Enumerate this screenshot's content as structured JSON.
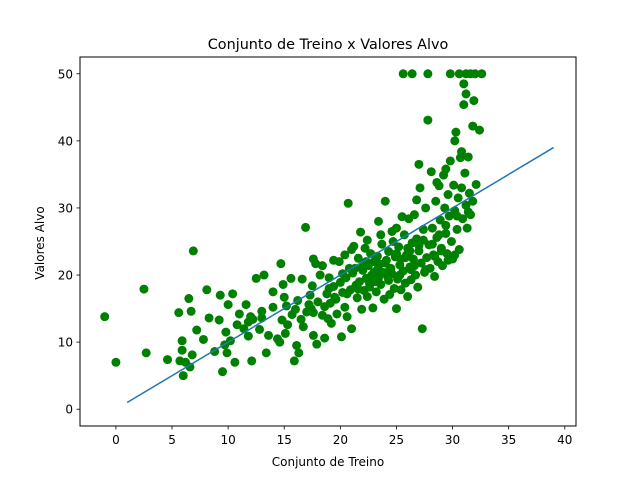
{
  "chart_data": {
    "type": "scatter",
    "title": "Conjunto de Treino x Valores Alvo",
    "xlabel": "Conjunto de Treino",
    "ylabel": "Valores Alvo",
    "xlim": [
      -3.2,
      41
    ],
    "ylim": [
      -2.5,
      52.5
    ],
    "xticks": [
      0,
      5,
      10,
      15,
      20,
      25,
      30,
      35,
      40
    ],
    "yticks": [
      0,
      10,
      20,
      30,
      40,
      50
    ],
    "grid": false,
    "legend": "none",
    "colors": {
      "points": "#008000",
      "line": "#1f77b4"
    },
    "series": [
      {
        "type": "scatter",
        "points": [
          [
            -1,
            13.8
          ],
          [
            0,
            7
          ],
          [
            2.5,
            17.9
          ],
          [
            2.7,
            8.4
          ],
          [
            4.6,
            7.4
          ],
          [
            5.7,
            7.2
          ],
          [
            5.6,
            14.4
          ],
          [
            5.9,
            10.2
          ],
          [
            5.9,
            8.8
          ],
          [
            6.0,
            5.0
          ],
          [
            6.2,
            7.0
          ],
          [
            6.5,
            16.5
          ],
          [
            6.6,
            6.3
          ],
          [
            6.7,
            14.6
          ],
          [
            6.8,
            8.1
          ],
          [
            6.9,
            23.6
          ],
          [
            7.2,
            11.8
          ],
          [
            7.8,
            10.4
          ],
          [
            8.1,
            17.8
          ],
          [
            8.3,
            13.6
          ],
          [
            8.8,
            8.6
          ],
          [
            9.2,
            13.3
          ],
          [
            9.3,
            17.0
          ],
          [
            9.5,
            5.6
          ],
          [
            9.7,
            9.6
          ],
          [
            9.9,
            8.4
          ],
          [
            10.0,
            15.6
          ],
          [
            10.2,
            10.2
          ],
          [
            10.4,
            17.2
          ],
          [
            10.6,
            7.0
          ],
          [
            11.0,
            14.2
          ],
          [
            11.4,
            12.0
          ],
          [
            11.6,
            15.6
          ],
          [
            11.8,
            10.9
          ],
          [
            12.0,
            13.8
          ],
          [
            12.1,
            7.2
          ],
          [
            12.2,
            13.4
          ],
          [
            12.5,
            19.5
          ],
          [
            12.8,
            11.9
          ],
          [
            13.0,
            13.6
          ],
          [
            13.2,
            20.0
          ],
          [
            13.4,
            8.4
          ],
          [
            13.6,
            11.0
          ],
          [
            14.0,
            17.5
          ],
          [
            14.4,
            10.5
          ],
          [
            14.6,
            10.0
          ],
          [
            14.7,
            21.7
          ],
          [
            14.8,
            13.3
          ],
          [
            14.9,
            18.6
          ],
          [
            15.1,
            11.3
          ],
          [
            15.2,
            15.4
          ],
          [
            15.3,
            12.6
          ],
          [
            15.6,
            19.5
          ],
          [
            15.7,
            14.1
          ],
          [
            15.9,
            7.2
          ],
          [
            16.0,
            14.9
          ],
          [
            16.1,
            9.5
          ],
          [
            16.2,
            16.2
          ],
          [
            16.3,
            8.4
          ],
          [
            16.5,
            13.4
          ],
          [
            16.7,
            12.3
          ],
          [
            16.9,
            27.1
          ],
          [
            17.0,
            14.5
          ],
          [
            17.2,
            15.6
          ],
          [
            17.3,
            17.0
          ],
          [
            17.4,
            15.0
          ],
          [
            17.5,
            18.4
          ],
          [
            17.6,
            11.0
          ],
          [
            17.8,
            21.7
          ],
          [
            17.9,
            9.7
          ],
          [
            18.0,
            16.0
          ],
          [
            18.2,
            20.0
          ],
          [
            18.4,
            14.0
          ],
          [
            18.6,
            10.6
          ],
          [
            18.8,
            17.2
          ],
          [
            18.9,
            13.5
          ],
          [
            19.0,
            19.6
          ],
          [
            19.1,
            15.8
          ],
          [
            19.2,
            12.8
          ],
          [
            19.4,
            18.3
          ],
          [
            19.5,
            16.7
          ],
          [
            19.7,
            14.2
          ],
          [
            19.9,
            22.0
          ],
          [
            20.0,
            18.9
          ],
          [
            20.1,
            10.8
          ],
          [
            20.2,
            17.4
          ],
          [
            20.4,
            15.2
          ],
          [
            20.5,
            19.6
          ],
          [
            20.6,
            13.8
          ],
          [
            20.7,
            30.7
          ],
          [
            20.8,
            21.0
          ],
          [
            20.9,
            17.8
          ],
          [
            21.0,
            12.0
          ],
          [
            21.1,
            20.3
          ],
          [
            21.2,
            24.3
          ],
          [
            21.4,
            18.5
          ],
          [
            21.5,
            16.6
          ],
          [
            21.6,
            22.5
          ],
          [
            21.7,
            19.0
          ],
          [
            21.8,
            26.4
          ],
          [
            21.9,
            14.9
          ],
          [
            22.0,
            20.7
          ],
          [
            22.1,
            17.7
          ],
          [
            22.2,
            24.0
          ],
          [
            22.3,
            19.5
          ],
          [
            22.4,
            16.8
          ],
          [
            22.5,
            21.4
          ],
          [
            22.6,
            18.2
          ],
          [
            22.7,
            23.2
          ],
          [
            22.8,
            20.0
          ],
          [
            22.9,
            15.1
          ],
          [
            23.0,
            22.0
          ],
          [
            23.1,
            19.0
          ],
          [
            23.2,
            17.5
          ],
          [
            23.3,
            20.8
          ],
          [
            23.4,
            28.0
          ],
          [
            23.5,
            21.6
          ],
          [
            23.6,
            18.6
          ],
          [
            23.7,
            24.6
          ],
          [
            23.8,
            20.4
          ],
          [
            23.9,
            16.4
          ],
          [
            24.0,
            31.0
          ],
          [
            24.1,
            22.2
          ],
          [
            24.2,
            19.8
          ],
          [
            24.3,
            23.5
          ],
          [
            24.4,
            17.1
          ],
          [
            24.5,
            21.0
          ],
          [
            24.6,
            20.2
          ],
          [
            24.7,
            25.0
          ],
          [
            24.8,
            18.0
          ],
          [
            24.9,
            22.7
          ],
          [
            25.0,
            15.0
          ],
          [
            25.1,
            19.4
          ],
          [
            25.2,
            24.2
          ],
          [
            25.3,
            21.5
          ],
          [
            25.4,
            17.8
          ],
          [
            25.5,
            28.7
          ],
          [
            25.6,
            20.6
          ],
          [
            25.7,
            26.0
          ],
          [
            25.8,
            18.8
          ],
          [
            25.9,
            23.0
          ],
          [
            26.0,
            16.8
          ],
          [
            26.1,
            28.4
          ],
          [
            26.2,
            21.2
          ],
          [
            26.3,
            19.3
          ],
          [
            26.4,
            24.8
          ],
          [
            26.5,
            22.4
          ],
          [
            26.6,
            29.0
          ],
          [
            26.7,
            20.0
          ],
          [
            26.8,
            25.4
          ],
          [
            26.9,
            18.2
          ],
          [
            27.0,
            23.6
          ],
          [
            27.1,
            33.0
          ],
          [
            27.2,
            21.8
          ],
          [
            27.3,
            12.0
          ],
          [
            27.4,
            26.8
          ],
          [
            27.5,
            20.4
          ],
          [
            27.6,
            30.0
          ],
          [
            27.7,
            22.6
          ],
          [
            27.8,
            43.1
          ],
          [
            27.9,
            24.5
          ],
          [
            28.0,
            21.0
          ],
          [
            28.1,
            35.4
          ],
          [
            28.2,
            27.0
          ],
          [
            28.3,
            23.0
          ],
          [
            28.4,
            19.8
          ],
          [
            28.5,
            31.0
          ],
          [
            28.6,
            25.6
          ],
          [
            28.7,
            22.0
          ],
          [
            28.8,
            33.3
          ],
          [
            28.9,
            28.2
          ],
          [
            29.0,
            24.0
          ],
          [
            29.1,
            21.4
          ],
          [
            29.2,
            34.9
          ],
          [
            29.3,
            30.0
          ],
          [
            29.4,
            26.2
          ],
          [
            29.5,
            23.2
          ],
          [
            29.6,
            32.0
          ],
          [
            29.7,
            28.8
          ],
          [
            29.8,
            37.0
          ],
          [
            29.9,
            25.0
          ],
          [
            30.0,
            22.4
          ],
          [
            30.1,
            33.4
          ],
          [
            30.2,
            29.6
          ],
          [
            30.3,
            41.3
          ],
          [
            30.4,
            26.8
          ],
          [
            30.5,
            31.5
          ],
          [
            30.6,
            23.8
          ],
          [
            30.7,
            37.5
          ],
          [
            30.8,
            33.0
          ],
          [
            30.9,
            28.4
          ],
          [
            31.0,
            45.4
          ],
          [
            31.1,
            35.2
          ],
          [
            31.2,
            30.4
          ],
          [
            31.3,
            27.0
          ],
          [
            31.4,
            37.6
          ],
          [
            31.5,
            32.2
          ],
          [
            31.6,
            29.0
          ],
          [
            31.8,
            42.2
          ],
          [
            31.9,
            46.0
          ],
          [
            32.1,
            33.5
          ],
          [
            32.4,
            41.6
          ],
          [
            31.0,
            48.5
          ],
          [
            31.2,
            47.0
          ],
          [
            25.6,
            50
          ],
          [
            26.4,
            50
          ],
          [
            27.8,
            50
          ],
          [
            29.8,
            50
          ],
          [
            30.6,
            50
          ],
          [
            31.2,
            50
          ],
          [
            31.6,
            50
          ],
          [
            32.0,
            50
          ],
          [
            32.6,
            50
          ],
          [
            30.2,
            40.0
          ],
          [
            30.8,
            38.4
          ],
          [
            29.4,
            35.8
          ],
          [
            28.6,
            33.8
          ],
          [
            27.0,
            36.5
          ],
          [
            26.8,
            31.2
          ],
          [
            25.0,
            27.0
          ],
          [
            24.6,
            26.5
          ],
          [
            23.6,
            26.0
          ],
          [
            22.4,
            25.2
          ],
          [
            21.0,
            23.8
          ],
          [
            20.4,
            23.0
          ],
          [
            19.4,
            22.2
          ],
          [
            18.4,
            21.4
          ],
          [
            17.6,
            22.4
          ],
          [
            16.6,
            19.4
          ],
          [
            15.0,
            16.7
          ],
          [
            14.0,
            15.2
          ],
          [
            13.0,
            14.6
          ],
          [
            11.8,
            13.0
          ],
          [
            10.8,
            12.6
          ],
          [
            9.8,
            11.5
          ],
          [
            25.8,
            22.6
          ],
          [
            26.6,
            21.4
          ],
          [
            27.6,
            20.8
          ],
          [
            28.4,
            22.8
          ],
          [
            29.0,
            23.6
          ],
          [
            29.6,
            22.2
          ],
          [
            30.2,
            23.0
          ],
          [
            28.2,
            24.6
          ],
          [
            27.4,
            25.2
          ],
          [
            26.2,
            23.6
          ],
          [
            25.4,
            22.4
          ],
          [
            24.4,
            20.8
          ],
          [
            23.4,
            19.6
          ],
          [
            22.6,
            18.8
          ],
          [
            21.6,
            17.9
          ],
          [
            20.6,
            17.2
          ],
          [
            19.6,
            16.4
          ],
          [
            18.6,
            15.3
          ],
          [
            17.6,
            14.4
          ],
          [
            22.0,
            21.2
          ],
          [
            23.0,
            20.4
          ],
          [
            24.0,
            21.8
          ],
          [
            25.0,
            23.2
          ],
          [
            26.0,
            24.0
          ],
          [
            27.0,
            24.4
          ],
          [
            28.8,
            26.0
          ],
          [
            29.4,
            27.4
          ],
          [
            30.4,
            28.8
          ],
          [
            31.4,
            29.4
          ],
          [
            31.8,
            31.0
          ],
          [
            19.0,
            18.0
          ],
          [
            20.2,
            20.2
          ],
          [
            21.3,
            21.0
          ],
          [
            22.3,
            22.0
          ],
          [
            23.3,
            22.8
          ],
          [
            24.3,
            19.2
          ],
          [
            25.3,
            20.0
          ],
          [
            26.3,
            20.8
          ]
        ]
      },
      {
        "type": "line",
        "points": [
          [
            1,
            1
          ],
          [
            39,
            39
          ]
        ]
      }
    ]
  }
}
